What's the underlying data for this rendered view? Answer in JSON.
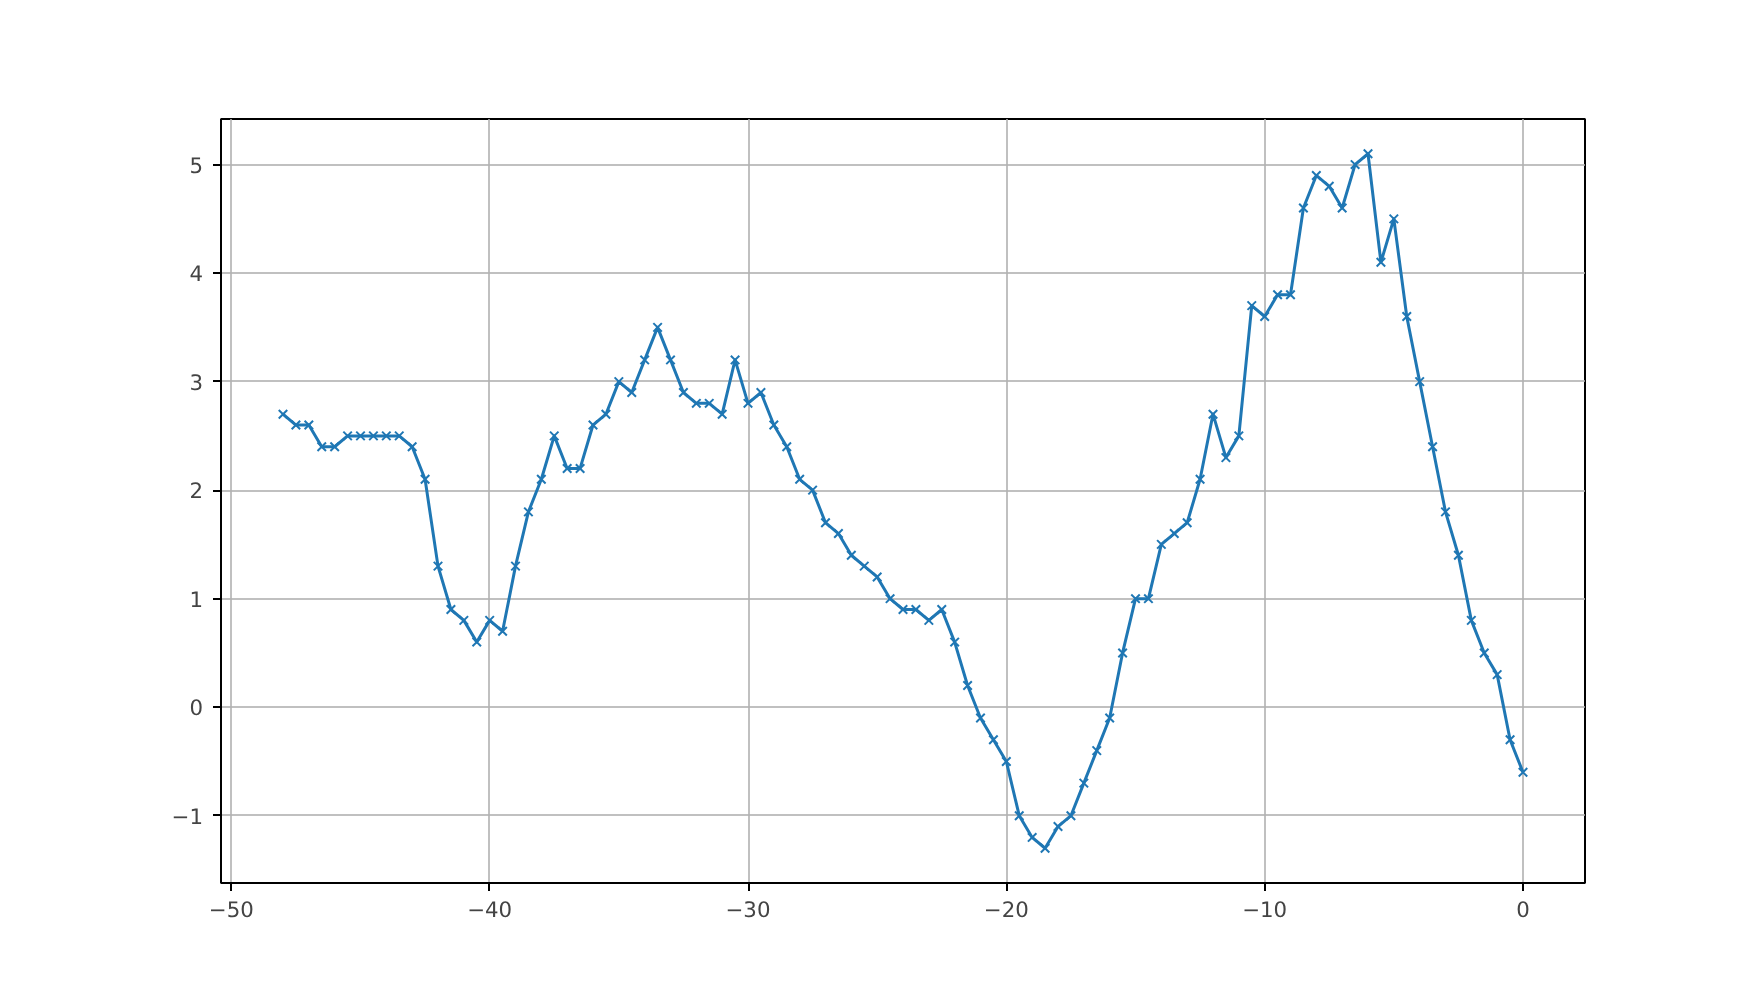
{
  "chart_data": {
    "type": "line",
    "marker": "cross",
    "grid": true,
    "xlim": [
      -50.4,
      2.4
    ],
    "xticks": [
      {
        "value": -50,
        "label": "−50"
      },
      {
        "value": -40,
        "label": "−40"
      },
      {
        "value": -30,
        "label": "−30"
      },
      {
        "value": -20,
        "label": "−20"
      },
      {
        "value": -10,
        "label": "−10"
      },
      0
    ],
    "ylim": [
      -1.62,
      5.42
    ],
    "yticks": [
      {
        "value": -1,
        "label": "−1"
      },
      0,
      1,
      2,
      3,
      4,
      5
    ],
    "x": [
      -48,
      -47.5,
      -47,
      -46.5,
      -46,
      -45.5,
      -45,
      -44.5,
      -44,
      -43.5,
      -43,
      -42.5,
      -42,
      -41.5,
      -41,
      -40.5,
      -40,
      -39.5,
      -39,
      -38.5,
      -38,
      -37.5,
      -37,
      -36.5,
      -36,
      -35.5,
      -35,
      -34.5,
      -34,
      -33.5,
      -33,
      -32.5,
      -32,
      -31.5,
      -31,
      -30.5,
      -30,
      -29.5,
      -29,
      -28.5,
      -28,
      -27.5,
      -27,
      -26.5,
      -26,
      -25.5,
      -25,
      -24.5,
      -24,
      -23.5,
      -23,
      -22.5,
      -22,
      -21.5,
      -21,
      -20.5,
      -20,
      -19.5,
      -19,
      -18.5,
      -18,
      -17.5,
      -17,
      -16.5,
      -16,
      -15.5,
      -15,
      -14.5,
      -14,
      -13.5,
      -13,
      -12.5,
      -12,
      -11.5,
      -11,
      -10.5,
      -10,
      -9.5,
      -9,
      -8.5,
      -8,
      -7.5,
      -7,
      -6.5,
      -6,
      -5.5,
      -5,
      -4.5,
      -4,
      -3.5,
      -3,
      -2.5,
      -2,
      -1.5,
      -1,
      -0.5,
      0
    ],
    "series": [
      {
        "color": "#1f77b4",
        "values": [
          2.7,
          2.6,
          2.6,
          2.4,
          2.4,
          2.5,
          2.5,
          2.5,
          2.5,
          2.5,
          2.4,
          2.1,
          1.3,
          0.9,
          0.8,
          0.6,
          0.8,
          0.7,
          1.3,
          1.8,
          2.1,
          2.5,
          2.2,
          2.2,
          2.6,
          2.7,
          3.0,
          2.9,
          3.2,
          3.5,
          3.2,
          2.9,
          2.8,
          2.8,
          2.7,
          3.2,
          2.8,
          2.9,
          2.6,
          2.4,
          2.1,
          2.0,
          1.7,
          1.6,
          1.4,
          1.3,
          1.2,
          1.0,
          0.9,
          0.9,
          0.8,
          0.9,
          0.6,
          0.2,
          -0.1,
          -0.3,
          -0.5,
          -1.0,
          -1.2,
          -1.3,
          -1.1,
          -1.0,
          -0.7,
          -0.4,
          -0.1,
          0.5,
          1.0,
          1.0,
          1.5,
          1.6,
          1.7,
          2.1,
          2.7,
          2.3,
          2.5,
          3.7,
          3.6,
          3.8,
          3.8,
          4.6,
          4.9,
          4.8,
          4.6,
          5.0,
          5.1,
          4.1,
          4.5,
          3.6,
          3.0,
          2.4,
          1.8,
          1.4,
          0.8,
          0.5,
          0.3,
          -0.3,
          -0.6
        ]
      }
    ]
  }
}
